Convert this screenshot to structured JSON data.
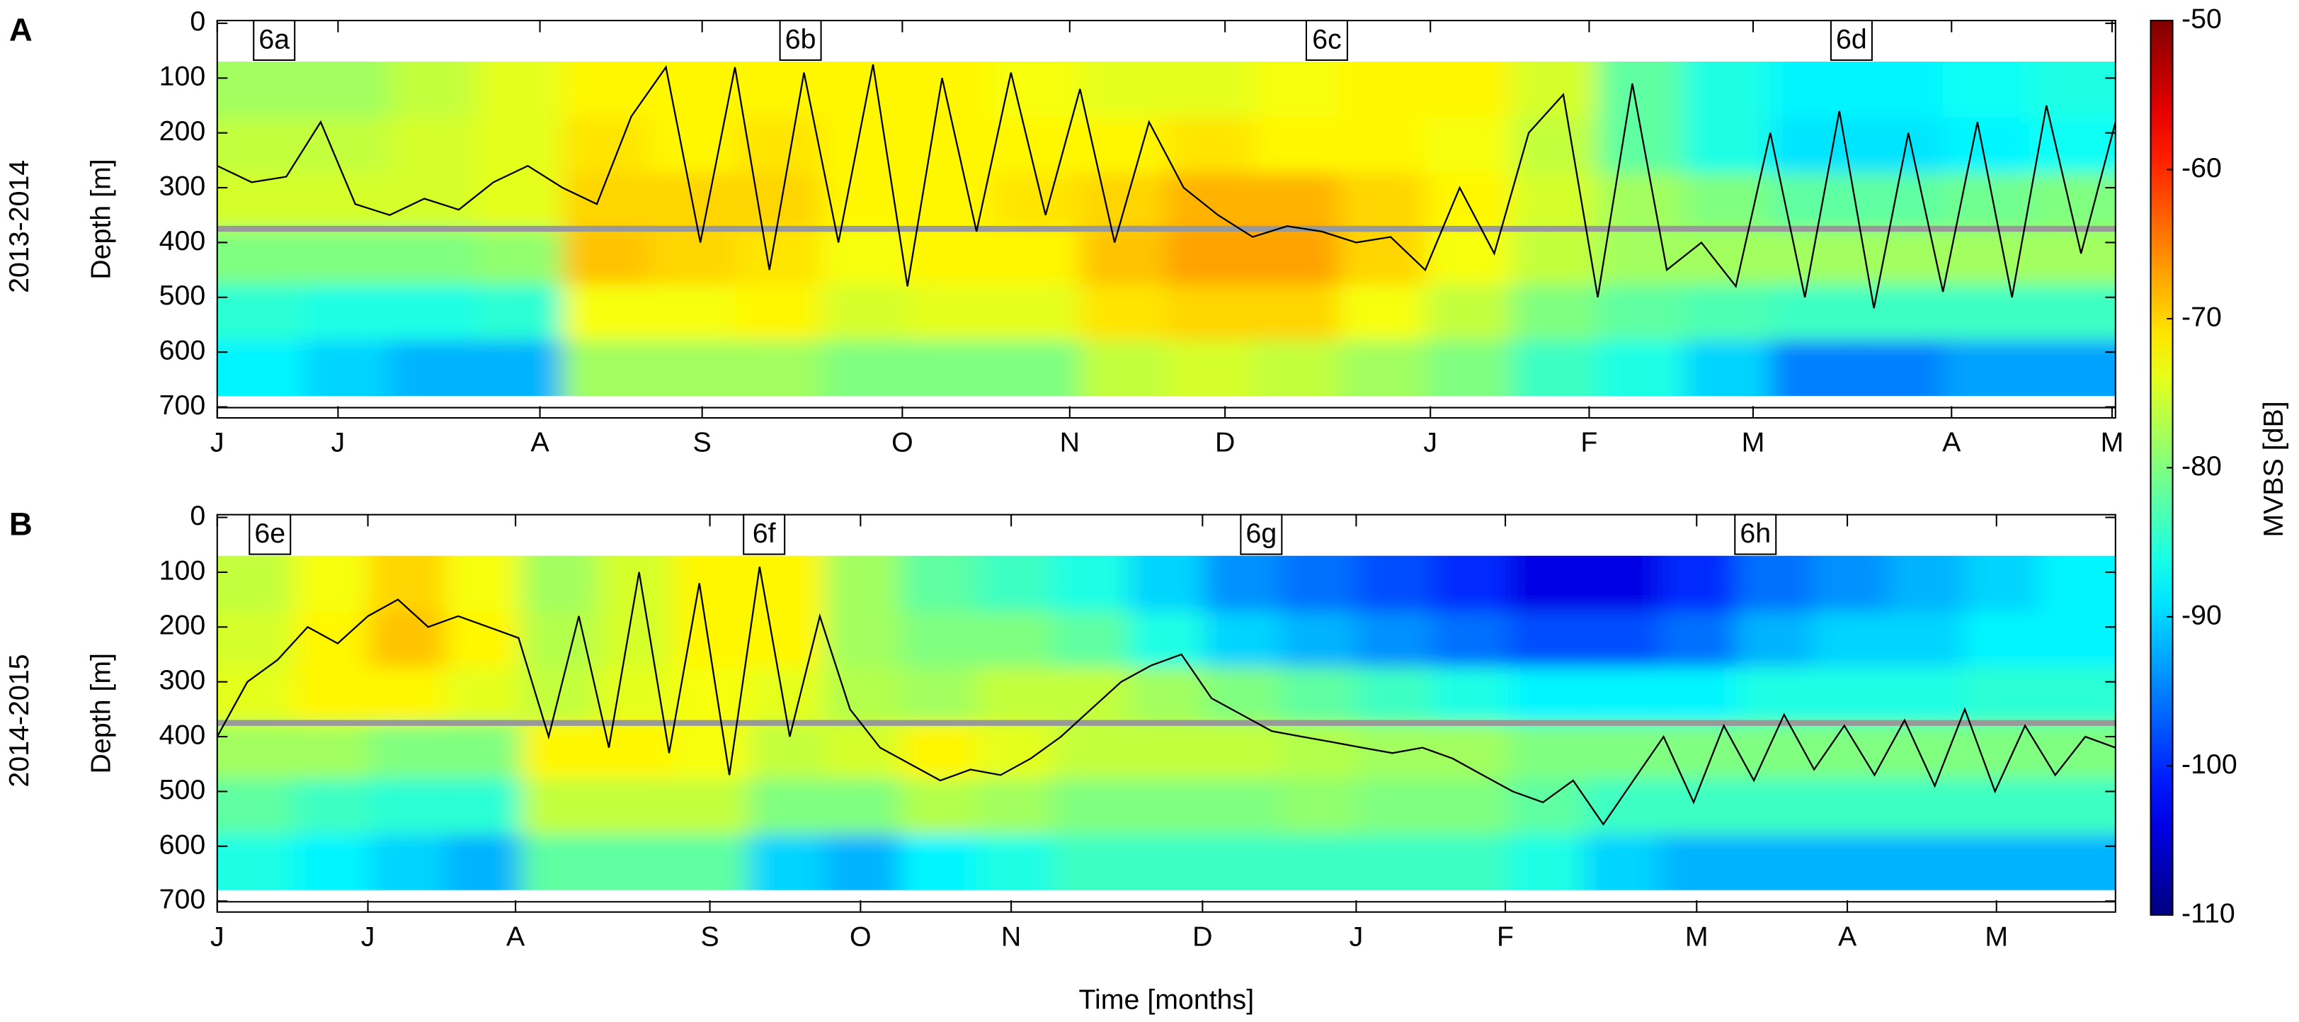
{
  "chart_data": [
    {
      "type": "heatmap",
      "panel_label": "A",
      "row_label": "2013-2014",
      "ylabel": "Depth [m]",
      "ylim": [
        -5,
        720
      ],
      "y_inverted": true,
      "yticks": [
        0,
        100,
        200,
        300,
        400,
        500,
        600,
        700
      ],
      "xlim": [
        0,
        11
      ],
      "xticks": [
        {
          "value": 0,
          "label": "J"
        },
        {
          "value": 0.7,
          "label": "J"
        },
        {
          "value": 1.87,
          "label": "A"
        },
        {
          "value": 2.81,
          "label": "S"
        },
        {
          "value": 3.97,
          "label": "O"
        },
        {
          "value": 4.94,
          "label": "N"
        },
        {
          "value": 5.84,
          "label": "D"
        },
        {
          "value": 7.03,
          "label": "J"
        },
        {
          "value": 7.95,
          "label": "F"
        },
        {
          "value": 8.9,
          "label": "M"
        },
        {
          "value": 10.05,
          "label": "A"
        },
        {
          "value": 10.98,
          "label": "M"
        }
      ],
      "heatmap": {
        "ylim": [
          70,
          680
        ],
        "z": [
          [
            -78,
            -78,
            -76,
            -74,
            -72,
            -72,
            -72,
            -72,
            -72,
            -73,
            -74,
            -74,
            -73,
            -72,
            -72,
            -75,
            -82,
            -86,
            -88,
            -88,
            -87,
            -86
          ],
          [
            -76,
            -76,
            -75,
            -74,
            -71,
            -72,
            -71,
            -72,
            -72,
            -72,
            -72,
            -71,
            -72,
            -72,
            -73,
            -76,
            -82,
            -86,
            -89,
            -89,
            -88,
            -87
          ],
          [
            -75,
            -75,
            -75,
            -74,
            -70,
            -70,
            -70,
            -72,
            -72,
            -71,
            -70,
            -68,
            -68,
            -70,
            -72,
            -75,
            -78,
            -80,
            -82,
            -82,
            -81,
            -80
          ],
          [
            -80,
            -80,
            -80,
            -79,
            -69,
            -70,
            -71,
            -73,
            -72,
            -72,
            -69,
            -67,
            -67,
            -70,
            -73,
            -76,
            -78,
            -78,
            -78,
            -78,
            -78,
            -78
          ],
          [
            -85,
            -86,
            -86,
            -85,
            -73,
            -73,
            -72,
            -75,
            -74,
            -74,
            -71,
            -70,
            -70,
            -73,
            -76,
            -80,
            -82,
            -83,
            -84,
            -84,
            -84,
            -84
          ],
          [
            -88,
            -90,
            -92,
            -92,
            -78,
            -78,
            -78,
            -80,
            -80,
            -80,
            -76,
            -75,
            -76,
            -78,
            -80,
            -84,
            -86,
            -90,
            -95,
            -95,
            -93,
            -93
          ]
        ]
      },
      "hline": {
        "value": 375,
        "color": "#999999"
      },
      "series": [
        {
          "color": "#000000",
          "x": [
            0,
            0.2,
            0.4,
            0.6,
            0.8,
            1,
            1.2,
            1.4,
            1.6,
            1.8,
            2,
            2.2,
            2.4,
            2.6,
            2.8,
            3,
            3.2,
            3.4,
            3.6,
            3.8,
            4,
            4.2,
            4.4,
            4.6,
            4.8,
            5,
            5.2,
            5.4,
            5.6,
            5.8,
            6,
            6.2,
            6.4,
            6.6,
            6.8,
            7,
            7.2,
            7.4,
            7.6,
            7.8,
            8,
            8.2,
            8.4,
            8.6,
            8.8,
            9,
            9.2,
            9.4,
            9.6,
            9.8,
            10,
            10.2,
            10.4,
            10.6,
            10.8,
            11
          ],
          "values": [
            260,
            290,
            280,
            180,
            330,
            350,
            320,
            340,
            290,
            260,
            300,
            330,
            170,
            80,
            400,
            80,
            450,
            90,
            400,
            75,
            480,
            100,
            380,
            90,
            350,
            120,
            400,
            180,
            300,
            350,
            390,
            370,
            380,
            400,
            390,
            450,
            300,
            420,
            200,
            130,
            500,
            110,
            450,
            400,
            480,
            200,
            500,
            160,
            520,
            200,
            490,
            180,
            500,
            150,
            420,
            180
          ]
        }
      ],
      "annotations": [
        {
          "x": 0.33,
          "text": "6a"
        },
        {
          "x": 3.38,
          "text": "6b"
        },
        {
          "x": 6.43,
          "text": "6c"
        },
        {
          "x": 9.47,
          "text": "6d"
        }
      ]
    },
    {
      "type": "heatmap",
      "panel_label": "B",
      "row_label": "2014-2015",
      "ylabel": "Depth [m]",
      "xlabel": "Time [months]",
      "ylim": [
        -5,
        720
      ],
      "y_inverted": true,
      "yticks": [
        0,
        100,
        200,
        300,
        400,
        500,
        600,
        700
      ],
      "xlim": [
        0,
        12.6
      ],
      "xticks": [
        {
          "value": 0,
          "label": "J"
        },
        {
          "value": 1.0,
          "label": "J"
        },
        {
          "value": 1.98,
          "label": "A"
        },
        {
          "value": 3.27,
          "label": "S"
        },
        {
          "value": 4.27,
          "label": "O"
        },
        {
          "value": 5.27,
          "label": "N"
        },
        {
          "value": 6.54,
          "label": "D"
        },
        {
          "value": 7.56,
          "label": "J"
        },
        {
          "value": 8.55,
          "label": "F"
        },
        {
          "value": 9.82,
          "label": "M"
        },
        {
          "value": 10.82,
          "label": "A"
        },
        {
          "value": 11.81,
          "label": "M"
        }
      ],
      "heatmap": {
        "ylim": [
          70,
          680
        ],
        "z": [
          [
            -76,
            -73,
            -70,
            -73,
            -78,
            -75,
            -72,
            -72,
            -78,
            -82,
            -84,
            -86,
            -90,
            -94,
            -96,
            -98,
            -100,
            -104,
            -104,
            -100,
            -96,
            -94,
            -92,
            -90,
            -88
          ],
          [
            -75,
            -72,
            -69,
            -72,
            -77,
            -75,
            -72,
            -72,
            -78,
            -80,
            -80,
            -82,
            -86,
            -90,
            -92,
            -94,
            -96,
            -98,
            -98,
            -96,
            -92,
            -90,
            -90,
            -88,
            -88
          ],
          [
            -74,
            -72,
            -72,
            -74,
            -76,
            -74,
            -73,
            -74,
            -77,
            -78,
            -76,
            -76,
            -78,
            -80,
            -82,
            -84,
            -86,
            -88,
            -88,
            -88,
            -86,
            -86,
            -86,
            -85,
            -85
          ],
          [
            -78,
            -78,
            -80,
            -80,
            -72,
            -72,
            -73,
            -76,
            -75,
            -72,
            -74,
            -76,
            -76,
            -76,
            -77,
            -78,
            -78,
            -80,
            -80,
            -80,
            -80,
            -80,
            -80,
            -80,
            -80
          ],
          [
            -82,
            -84,
            -85,
            -85,
            -76,
            -76,
            -76,
            -80,
            -80,
            -77,
            -78,
            -80,
            -80,
            -80,
            -79,
            -80,
            -80,
            -82,
            -84,
            -84,
            -84,
            -84,
            -84,
            -84,
            -84
          ],
          [
            -86,
            -88,
            -90,
            -92,
            -82,
            -82,
            -82,
            -90,
            -92,
            -88,
            -86,
            -84,
            -84,
            -84,
            -84,
            -84,
            -84,
            -86,
            -90,
            -92,
            -92,
            -92,
            -92,
            -92,
            -92
          ]
        ]
      },
      "hline": {
        "value": 375,
        "color": "#999999"
      },
      "series": [
        {
          "color": "#000000",
          "x": [
            0,
            0.2,
            0.4,
            0.6,
            0.8,
            1,
            1.2,
            1.4,
            1.6,
            1.8,
            2,
            2.2,
            2.4,
            2.6,
            2.8,
            3,
            3.2,
            3.4,
            3.6,
            3.8,
            4,
            4.2,
            4.4,
            4.6,
            4.8,
            5,
            5.2,
            5.4,
            5.6,
            5.8,
            6,
            6.2,
            6.4,
            6.6,
            6.8,
            7,
            7.2,
            7.4,
            7.6,
            7.8,
            8,
            8.2,
            8.4,
            8.6,
            8.8,
            9,
            9.2,
            9.4,
            9.6,
            9.8,
            10,
            10.2,
            10.4,
            10.6,
            10.8,
            11,
            11.2,
            11.4,
            11.6,
            11.8,
            12,
            12.2,
            12.4,
            12.6
          ],
          "values": [
            400,
            300,
            260,
            200,
            230,
            180,
            150,
            200,
            180,
            200,
            220,
            400,
            180,
            420,
            100,
            430,
            120,
            470,
            90,
            400,
            180,
            350,
            420,
            450,
            480,
            460,
            470,
            440,
            400,
            350,
            300,
            270,
            250,
            330,
            360,
            390,
            400,
            410,
            420,
            430,
            420,
            440,
            470,
            500,
            520,
            480,
            560,
            480,
            400,
            520,
            380,
            480,
            360,
            460,
            380,
            470,
            370,
            490,
            350,
            500,
            380,
            470,
            400,
            420
          ]
        }
      ],
      "annotations": [
        {
          "x": 0.35,
          "text": "6e"
        },
        {
          "x": 3.63,
          "text": "6f"
        },
        {
          "x": 6.93,
          "text": "6g"
        },
        {
          "x": 10.21,
          "text": "6h"
        }
      ]
    }
  ],
  "colorbar": {
    "label": "MVBS [dB]",
    "colormap": "jet",
    "zlim": [
      -110,
      -50
    ],
    "ticks": [
      -50,
      -60,
      -70,
      -80,
      -90,
      -100,
      -110
    ]
  }
}
